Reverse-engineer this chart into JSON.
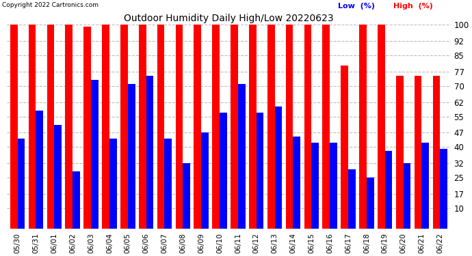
{
  "title": "Outdoor Humidity Daily High/Low 20220623",
  "copyright": "Copyright 2022 Cartronics.com",
  "dates": [
    "05/30",
    "05/31",
    "06/01",
    "06/02",
    "06/03",
    "06/04",
    "06/05",
    "06/06",
    "06/07",
    "06/08",
    "06/09",
    "06/10",
    "06/11",
    "06/12",
    "06/13",
    "06/14",
    "06/15",
    "06/16",
    "06/17",
    "06/18",
    "06/19",
    "06/20",
    "06/21",
    "06/22"
  ],
  "high": [
    100,
    100,
    100,
    100,
    99,
    100,
    100,
    100,
    100,
    100,
    100,
    100,
    100,
    100,
    100,
    100,
    100,
    100,
    80,
    100,
    100,
    75,
    75,
    75
  ],
  "low": [
    44,
    58,
    51,
    28,
    73,
    44,
    71,
    75,
    44,
    32,
    47,
    57,
    71,
    57,
    60,
    45,
    42,
    42,
    29,
    25,
    38,
    32,
    42,
    39
  ],
  "high_color": "#ff0000",
  "low_color": "#0000ff",
  "bg_color": "#ffffff",
  "grid_color": "#bbbbbb",
  "yticks": [
    10,
    17,
    25,
    32,
    40,
    47,
    55,
    62,
    70,
    77,
    85,
    92,
    100
  ],
  "ymin": 0,
  "ymax": 100,
  "bar_width": 0.4,
  "legend_low": "Low  (%)",
  "legend_high": "High  (%)"
}
